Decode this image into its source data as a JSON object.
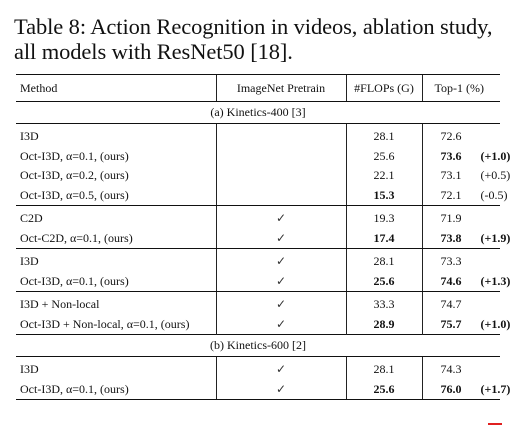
{
  "caption": "Table 8: Action Recognition in videos, ablation study, all models with ResNet50 [18].",
  "table": {
    "headers": {
      "method": "Method",
      "pretrain": "ImageNet Pretrain",
      "flops": "#FLOPs (G)",
      "top1": "Top-1 (%)"
    },
    "sections": [
      {
        "title": "(a) Kinetics-400 [3]",
        "groups": [
          [
            {
              "method": "I3D",
              "pretrain": "",
              "flops": "28.1",
              "flops_bold": false,
              "top1": "72.6",
              "top1_bold": false,
              "delta": "",
              "delta_bold": false
            },
            {
              "method": "Oct-I3D, α=0.1, (ours)",
              "pretrain": "",
              "flops": "25.6",
              "flops_bold": false,
              "top1": "73.6",
              "top1_bold": true,
              "delta": "(+1.0)",
              "delta_bold": true
            },
            {
              "method": "Oct-I3D, α=0.2, (ours)",
              "pretrain": "",
              "flops": "22.1",
              "flops_bold": false,
              "top1": "73.1",
              "top1_bold": false,
              "delta": "(+0.5)",
              "delta_bold": false
            },
            {
              "method": "Oct-I3D, α=0.5, (ours)",
              "pretrain": "",
              "flops": "15.3",
              "flops_bold": true,
              "top1": "72.1",
              "top1_bold": false,
              "delta": "(-0.5)",
              "delta_bold": false
            }
          ],
          [
            {
              "method": "C2D",
              "pretrain": "✓",
              "flops": "19.3",
              "flops_bold": false,
              "top1": "71.9",
              "top1_bold": false,
              "delta": "",
              "delta_bold": false
            },
            {
              "method": "Oct-C2D, α=0.1, (ours)",
              "pretrain": "✓",
              "flops": "17.4",
              "flops_bold": true,
              "top1": "73.8",
              "top1_bold": true,
              "delta": "(+1.9)",
              "delta_bold": true
            }
          ],
          [
            {
              "method": "I3D",
              "pretrain": "✓",
              "flops": "28.1",
              "flops_bold": false,
              "top1": "73.3",
              "top1_bold": false,
              "delta": "",
              "delta_bold": false
            },
            {
              "method": "Oct-I3D, α=0.1, (ours)",
              "pretrain": "✓",
              "flops": "25.6",
              "flops_bold": true,
              "top1": "74.6",
              "top1_bold": true,
              "delta": "(+1.3)",
              "delta_bold": true
            }
          ],
          [
            {
              "method": "I3D + Non-local",
              "pretrain": "✓",
              "flops": "33.3",
              "flops_bold": false,
              "top1": "74.7",
              "top1_bold": false,
              "delta": "",
              "delta_bold": false
            },
            {
              "method": "Oct-I3D + Non-local, α=0.1, (ours)",
              "pretrain": "✓",
              "flops": "28.9",
              "flops_bold": true,
              "top1": "75.7",
              "top1_bold": true,
              "delta": "(+1.0)",
              "delta_bold": true
            }
          ]
        ]
      },
      {
        "title": "(b) Kinetics-600 [2]",
        "groups": [
          [
            {
              "method": "I3D",
              "pretrain": "✓",
              "flops": "28.1",
              "flops_bold": false,
              "top1": "74.3",
              "top1_bold": false,
              "delta": "",
              "delta_bold": false
            },
            {
              "method": "Oct-I3D, α=0.1, (ours)",
              "pretrain": "✓",
              "flops": "25.6",
              "flops_bold": true,
              "top1": "76.0",
              "top1_bold": true,
              "delta": "(+1.7)",
              "delta_bold": true
            }
          ]
        ]
      }
    ]
  }
}
